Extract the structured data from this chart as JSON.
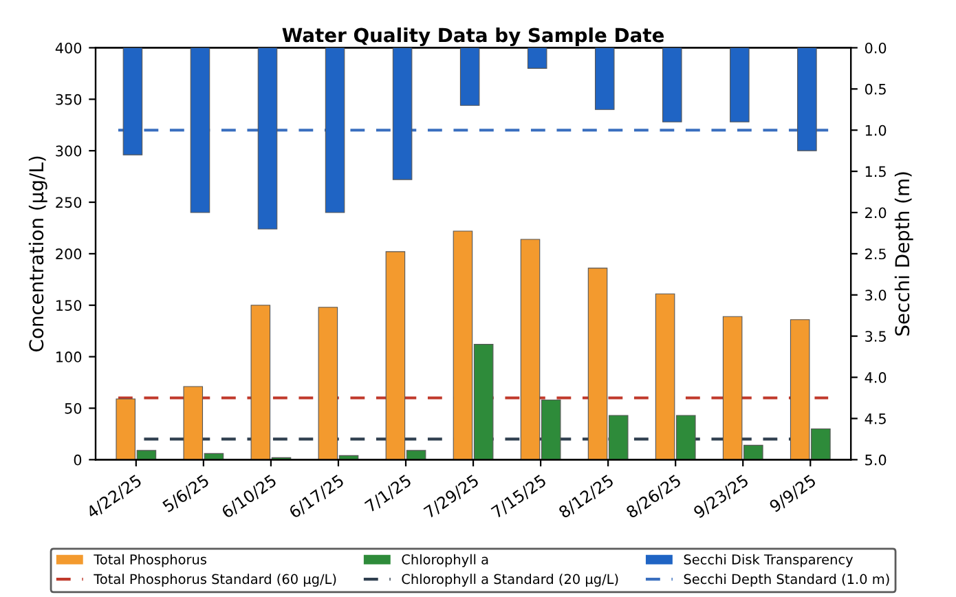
{
  "chart_data": {
    "type": "bar",
    "title": "Water Quality Data by Sample Date",
    "ylabel": "Concentration (µg/L)",
    "y2label": "Secchi Depth (m)",
    "categories": [
      "4/22/25",
      "5/6/25",
      "6/10/25",
      "6/17/25",
      "7/1/25",
      "7/29/25",
      "7/15/25",
      "8/12/25",
      "8/26/25",
      "9/23/25",
      "9/9/25"
    ],
    "series": [
      {
        "name": "Total Phosphorus",
        "color": "#f39a2e",
        "values": [
          59,
          71,
          150,
          148,
          202,
          222,
          214,
          186,
          161,
          139,
          136
        ]
      },
      {
        "name": "Chlorophyll a",
        "color": "#2e8b3a",
        "values": [
          9,
          6,
          2,
          4,
          9,
          112,
          58,
          43,
          43,
          14,
          30
        ]
      },
      {
        "name": "Secchi Disk Transparency",
        "color": "#1f64c4",
        "axis": "y2",
        "values": [
          1.3,
          2.0,
          2.2,
          2.0,
          1.6,
          0.7,
          0.25,
          0.75,
          0.9,
          0.9,
          1.25
        ]
      }
    ],
    "ylim": [
      0,
      400
    ],
    "yticks": [
      0,
      50,
      100,
      150,
      200,
      250,
      300,
      350,
      400
    ],
    "y2lim": [
      5.0,
      0.0
    ],
    "y2ticks": [
      {
        "value": 0,
        "label": "0.0"
      },
      {
        "value": 0.5,
        "label": "0.5"
      },
      {
        "value": 1,
        "label": "1.0"
      },
      {
        "value": 1.5,
        "label": "1.5"
      },
      {
        "value": 2,
        "label": "2.0"
      },
      {
        "value": 2.5,
        "label": "2.5"
      },
      {
        "value": 3,
        "label": "3.0"
      },
      {
        "value": 3.5,
        "label": "3.5"
      },
      {
        "value": 4,
        "label": "4.0"
      },
      {
        "value": 4.5,
        "label": "4.5"
      },
      {
        "value": 5,
        "label": "5.0"
      }
    ],
    "ref_lines": [
      {
        "axis": "y",
        "value": 60,
        "label": "Total Phosphorus Standard (60 µg/L)",
        "color": "#c0392b",
        "line_style": "dashed"
      },
      {
        "axis": "y",
        "value": 20,
        "label": "Chlorophyll a Standard (20 µg/L)",
        "color": "#2f3f4f",
        "line_style": "dashed"
      },
      {
        "axis": "y2",
        "value": 1.0,
        "label": "Secchi Depth Standard (1.0 m)",
        "color": "#3a6fbf",
        "line_style": "dashed"
      }
    ],
    "grid": false,
    "legend": "bottom"
  }
}
